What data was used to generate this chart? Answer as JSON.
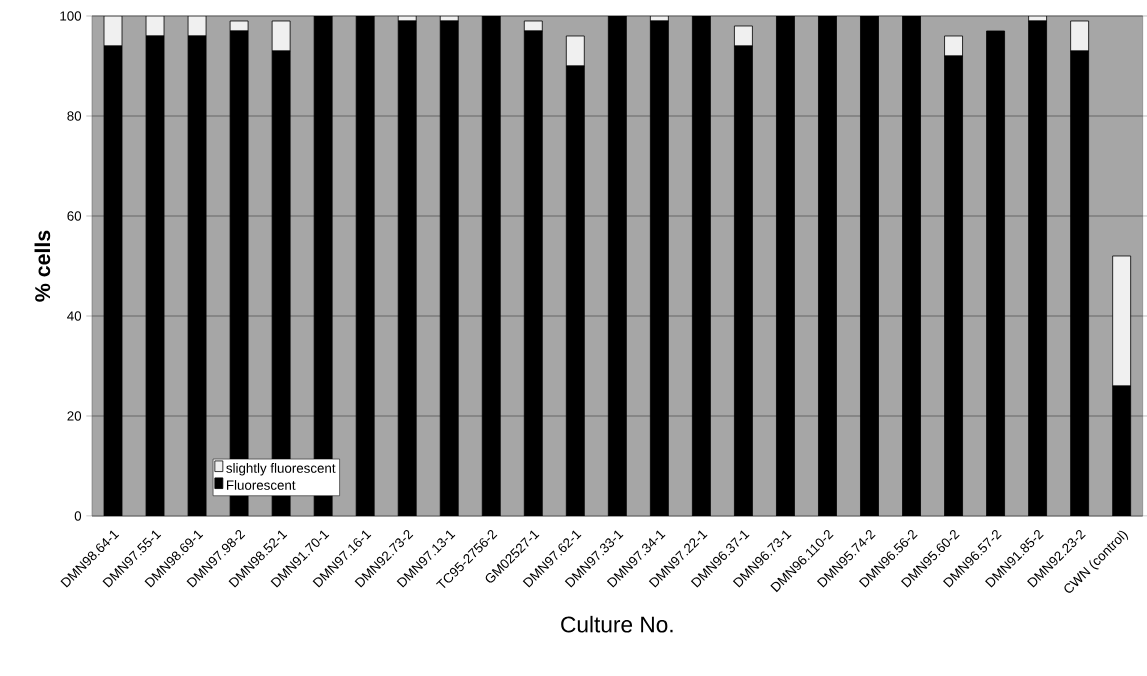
{
  "chart_data": {
    "type": "bar",
    "stacked": true,
    "xlabel": "Culture No.",
    "ylabel": "% cells",
    "categories": [
      "DMN98.64-1",
      "DMN97.55-1",
      "DMN98.69-1",
      "DMN97.98-2",
      "DMN98.52-1",
      "DMN91.70-1",
      "DMN97.16-1",
      "DMN92.73-2",
      "DMN97.13-1",
      "TC95-2756-2",
      "GM02527-1",
      "DMN97.62-1",
      "DMN97.33-1",
      "DMN97.34-1",
      "DMN97.22-1",
      "DMN96.37-1",
      "DMN96.73-1",
      "DMN96.110-2",
      "DMN95.74-2",
      "DMN96.56-2",
      "DMN95.60-2",
      "DMN96.57-2",
      "DMN91.85-2",
      "DMN92.23-2",
      "CWN (control)"
    ],
    "series": [
      {
        "name": "Fluorescent",
        "color": "#000000",
        "values": [
          94,
          96,
          96,
          97,
          93,
          100,
          100,
          99,
          99,
          100,
          97,
          90,
          100,
          99,
          100,
          94,
          100,
          100,
          100,
          100,
          92,
          97,
          99,
          93,
          26
        ]
      },
      {
        "name": "slightly fluorescent",
        "color": "#f0f0f0",
        "values": [
          6,
          4,
          4,
          2,
          6,
          0,
          0,
          1,
          1,
          0,
          2,
          6,
          0,
          1,
          0,
          4,
          0,
          0,
          0,
          0,
          4,
          0,
          1,
          6,
          26
        ]
      }
    ],
    "ylim": [
      0,
      100
    ],
    "yticks": [
      0,
      20,
      40,
      60,
      80,
      100
    ],
    "grid": "y",
    "legend": "bottom left"
  }
}
